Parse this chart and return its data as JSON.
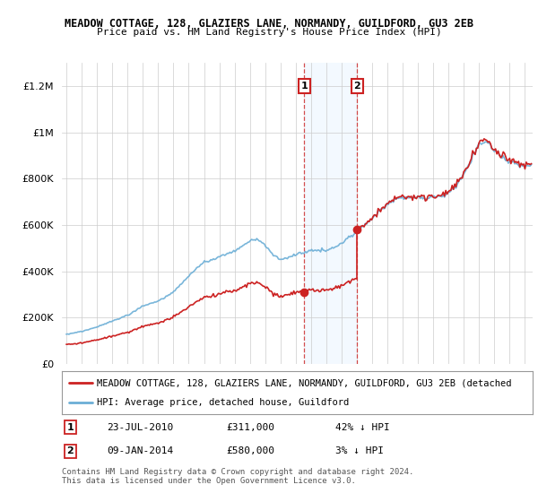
{
  "title": "MEADOW COTTAGE, 128, GLAZIERS LANE, NORMANDY, GUILDFORD, GU3 2EB",
  "subtitle": "Price paid vs. HM Land Registry's House Price Index (HPI)",
  "legend_line1": "MEADOW COTTAGE, 128, GLAZIERS LANE, NORMANDY, GUILDFORD, GU3 2EB (detached",
  "legend_line2": "HPI: Average price, detached house, Guildford",
  "footnote": "Contains HM Land Registry data © Crown copyright and database right 2024.\nThis data is licensed under the Open Government Licence v3.0.",
  "transaction1_date": "23-JUL-2010",
  "transaction1_price": "£311,000",
  "transaction1_hpi": "42% ↓ HPI",
  "transaction2_date": "09-JAN-2014",
  "transaction2_price": "£580,000",
  "transaction2_hpi": "3% ↓ HPI",
  "hpi_color": "#6baed6",
  "price_color": "#cc2222",
  "shaded_color": "#ddeeff",
  "transaction1_x": 2010.56,
  "transaction2_x": 2014.03,
  "ylim_max": 1300000,
  "background_color": "#ffffff"
}
